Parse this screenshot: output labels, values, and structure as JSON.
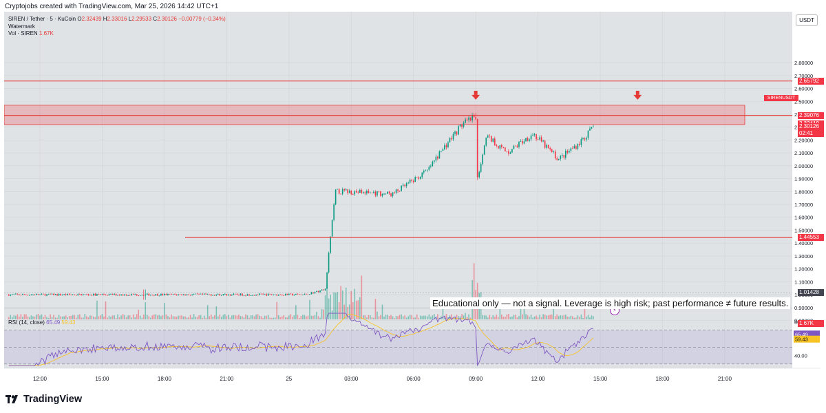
{
  "caption": "Cryptojobs created with TradingView.com, Mar 25, 2026 14:42 UTC+1",
  "legend": {
    "symbol_line": "SIREN / Tether · 5 · KuCoin",
    "ohlc": [
      {
        "key": "O",
        "value": "2.32439"
      },
      {
        "key": "H",
        "value": "2.33016"
      },
      {
        "key": "L",
        "value": "2.29533"
      },
      {
        "key": "C",
        "value": "2.30126"
      }
    ],
    "change": "−0.00779 (−0.34%)",
    "watermark": "Watermark",
    "vol_label": "Vol · SIREN",
    "vol_value": "1.67K"
  },
  "currency": "USDT",
  "price_axis_labels": [
    "2.80000",
    "2.70000",
    "2.60000",
    "2.50000",
    "2.40000",
    "2.30000",
    "2.20000",
    "2.10000",
    "2.00000",
    "1.90000",
    "1.80000",
    "1.70000",
    "1.60000",
    "1.50000",
    "1.40000",
    "1.30000",
    "1.20000",
    "1.10000",
    "1.00000",
    "0.90000",
    "0.80000"
  ],
  "rsi_axis_labels": [
    "80.00",
    "60.00",
    "40.00"
  ],
  "time_labels": [
    "12:00",
    "15:00",
    "18:00",
    "21:00",
    "25",
    "03:00",
    "06:00",
    "09:00",
    "12:00",
    "15:00",
    "18:00",
    "21:00"
  ],
  "price_chips": [
    {
      "label": "2.65792",
      "color": "#f23645",
      "price": 2.65792
    },
    {
      "label": "2.39076",
      "color": "#f23645",
      "price": 2.39076
    },
    {
      "label": "2.32419",
      "color": "#f23645",
      "price": 2.32419
    },
    {
      "label": "2.30126",
      "color": "#f23645",
      "price": 2.30126
    },
    {
      "label": "1.44553",
      "color": "#f23645",
      "price": 1.44553
    },
    {
      "label": "1.01428",
      "color": "#434651",
      "price": 1.01428
    },
    {
      "label": "1.67K",
      "color": "#f23645",
      "price": 0.775
    }
  ],
  "symbol_chip": {
    "label": "SIRENUSDT",
    "countdown": "02:41"
  },
  "rsi": {
    "label": "RSI (14, close)",
    "value": "65.49",
    "ma": "59.43",
    "value_color": "#7e57c2",
    "ma_color": "#f7c325"
  },
  "levels": {
    "upper": 2.65792,
    "zone_top": 2.47,
    "zone_bottom": 2.32,
    "zone_mid": 2.39076,
    "lower": 1.44553
  },
  "colors": {
    "up": "#089981",
    "down": "#f23645",
    "level": "#e53935",
    "zone": "rgba(242,54,69,0.25)",
    "rsi_line": "#7e57c2",
    "rsi_ma": "#f7c325"
  },
  "disclaimer": "Educational only — not a signal. Leverage is high risk; past performance ≠ future results.",
  "footer_brand": "TradingView",
  "chart_data": {
    "type": "candlestick",
    "title": "SIREN / Tether · 5 · KuCoin",
    "y_range": [
      0.78,
      2.85
    ],
    "x_range_labels": [
      "12:00",
      "21:00"
    ],
    "grid": true,
    "price_path": [
      {
        "t": "10:30",
        "p": 1.0
      },
      {
        "t": "15:00",
        "p": 1.0
      },
      {
        "t": "21:00",
        "p": 1.0
      },
      {
        "t": "00:45",
        "p": 1.0
      },
      {
        "t": "01:45",
        "p": 1.04
      },
      {
        "t": "02:00",
        "p": 1.45
      },
      {
        "t": "02:15",
        "p": 1.8
      },
      {
        "t": "03:00",
        "p": 1.8
      },
      {
        "t": "05:00",
        "p": 1.78
      },
      {
        "t": "06:40",
        "p": 1.96
      },
      {
        "t": "07:30",
        "p": 2.15
      },
      {
        "t": "08:20",
        "p": 2.32
      },
      {
        "t": "09:00",
        "p": 2.38
      },
      {
        "t": "09:05",
        "p": 1.89
      },
      {
        "t": "09:30",
        "p": 2.24
      },
      {
        "t": "10:30",
        "p": 2.1
      },
      {
        "t": "11:45",
        "p": 2.25
      },
      {
        "t": "13:00",
        "p": 2.05
      },
      {
        "t": "14:00",
        "p": 2.18
      },
      {
        "t": "14:42",
        "p": 2.3
      }
    ],
    "rsi_range": [
      25,
      95
    ]
  }
}
